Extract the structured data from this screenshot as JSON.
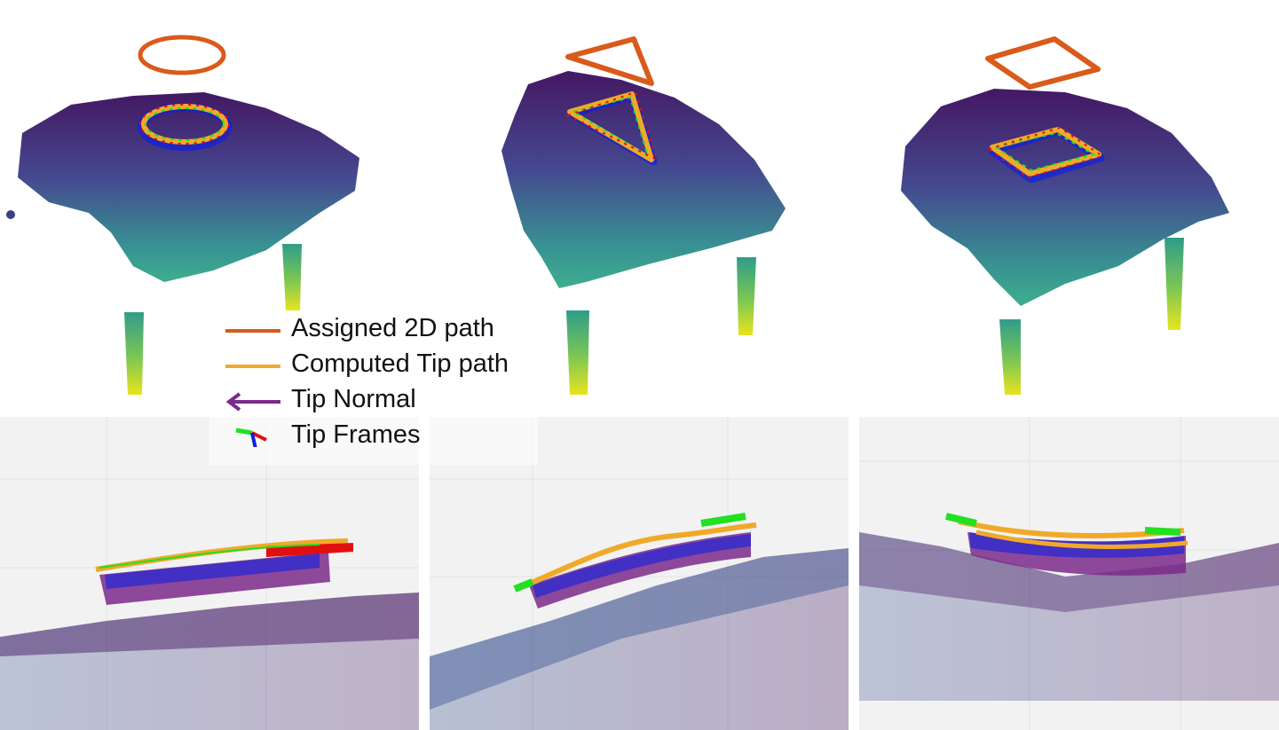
{
  "figure": {
    "colors": {
      "assigned_path": "#d95a1b",
      "computed_path": "#f0a929",
      "tip_normal": "#7b2a8b",
      "frame_x": "#e01010",
      "frame_y": "#22e022",
      "frame_z": "#1020e0",
      "grid_bg": "#f2f2f2",
      "cloud_dark": "#3a0c5a",
      "cloud_mid": "#2d8a8c",
      "cloud_light": "#e8e41e"
    },
    "top_panels": [
      {
        "shape": "ellipse"
      },
      {
        "shape": "triangle"
      },
      {
        "shape": "square"
      }
    ],
    "bottom_panels": [
      {
        "view": "side"
      },
      {
        "view": "side"
      },
      {
        "view": "side"
      }
    ]
  },
  "legend": {
    "items": [
      {
        "label": "Assigned 2D path",
        "icon": "line-icon"
      },
      {
        "label": "Computed Tip path",
        "icon": "line-icon"
      },
      {
        "label": "Tip Normal",
        "icon": "arrow-left-icon"
      },
      {
        "label": "Tip Frames",
        "icon": "axes-icon"
      }
    ]
  }
}
